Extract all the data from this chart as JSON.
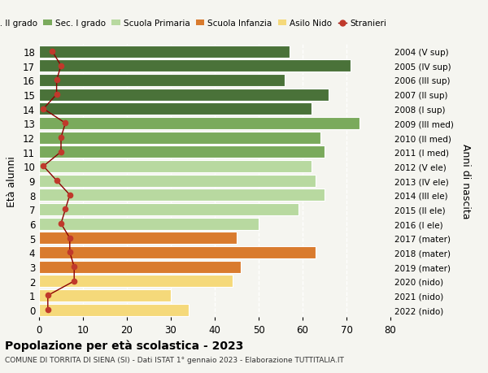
{
  "ages": [
    18,
    17,
    16,
    15,
    14,
    13,
    12,
    11,
    10,
    9,
    8,
    7,
    6,
    5,
    4,
    3,
    2,
    1,
    0
  ],
  "right_labels_by_age": {
    "18": "2004 (V sup)",
    "17": "2005 (IV sup)",
    "16": "2006 (III sup)",
    "15": "2007 (II sup)",
    "14": "2008 (I sup)",
    "13": "2009 (III med)",
    "12": "2010 (II med)",
    "11": "2011 (I med)",
    "10": "2012 (V ele)",
    "9": "2013 (IV ele)",
    "8": "2014 (III ele)",
    "7": "2015 (II ele)",
    "6": "2016 (I ele)",
    "5": "2017 (mater)",
    "4": "2018 (mater)",
    "3": "2019 (mater)",
    "2": "2020 (nido)",
    "1": "2021 (nido)",
    "0": "2022 (nido)"
  },
  "bar_values": [
    57,
    71,
    56,
    66,
    62,
    73,
    64,
    65,
    62,
    63,
    65,
    59,
    50,
    45,
    63,
    46,
    44,
    30,
    34
  ],
  "bar_colors": [
    "#4a7239",
    "#4a7239",
    "#4a7239",
    "#4a7239",
    "#4a7239",
    "#7aaa5c",
    "#7aaa5c",
    "#7aaa5c",
    "#b8d9a0",
    "#b8d9a0",
    "#b8d9a0",
    "#b8d9a0",
    "#b8d9a0",
    "#d97b2e",
    "#d97b2e",
    "#d97b2e",
    "#f5d97a",
    "#f5d97a",
    "#f5d97a"
  ],
  "stranieri_values": [
    3,
    5,
    4,
    4,
    1,
    6,
    5,
    5,
    1,
    4,
    7,
    6,
    5,
    7,
    7,
    8,
    8,
    2,
    2
  ],
  "legend_labels": [
    "Sec. II grado",
    "Sec. I grado",
    "Scuola Primaria",
    "Scuola Infanzia",
    "Asilo Nido",
    "Stranieri"
  ],
  "legend_colors": [
    "#4a7239",
    "#7aaa5c",
    "#b8d9a0",
    "#d97b2e",
    "#f5d97a",
    "#c0392b"
  ],
  "ylabel_left": "Età alunni",
  "ylabel_right": "Anni di nascita",
  "title": "Popolazione per età scolastica - 2023",
  "subtitle": "COMUNE DI TORRITA DI SIENA (SI) - Dati ISTAT 1° gennaio 2023 - Elaborazione TUTTITALIA.IT",
  "xlim": [
    0,
    80
  ],
  "bg_color": "#f5f5f0",
  "stranieri_line_color": "#8b0000",
  "stranieri_marker_color": "#c0392b",
  "xticks": [
    0,
    10,
    20,
    30,
    40,
    50,
    60,
    70,
    80
  ]
}
